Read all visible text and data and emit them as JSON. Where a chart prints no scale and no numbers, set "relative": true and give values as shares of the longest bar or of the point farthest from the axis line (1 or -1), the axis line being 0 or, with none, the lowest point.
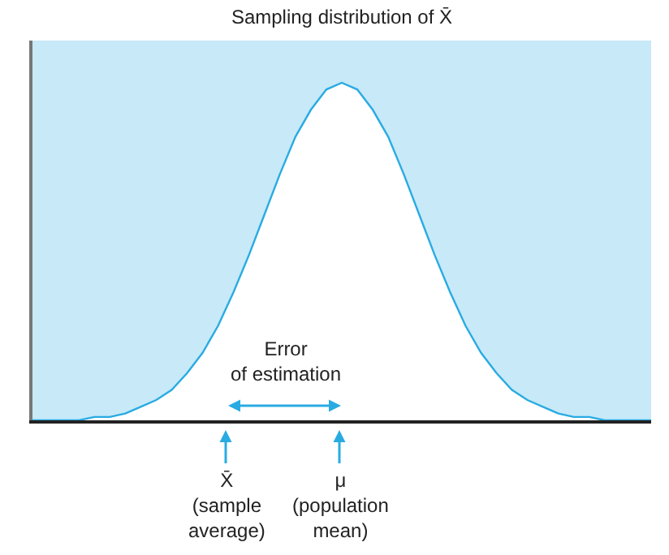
{
  "chart_data": {
    "type": "area",
    "title": "Sampling distribution of X̄",
    "relative": true,
    "grid": false,
    "categories": [
      null,
      null,
      null,
      null,
      null,
      null,
      null,
      null,
      null,
      null,
      null,
      null,
      null,
      null,
      null,
      null,
      null,
      null,
      null,
      null,
      null,
      null,
      null,
      null,
      null,
      null,
      null,
      null,
      null,
      null,
      null,
      null,
      null,
      null,
      null,
      null,
      null,
      null,
      null,
      null,
      null
    ],
    "series": [
      {
        "color": "#29abe2",
        "values": [
          0,
          0,
          0,
          0,
          0.01,
          0.01,
          0.02,
          0.04,
          0.06,
          0.09,
          0.14,
          0.2,
          0.28,
          0.38,
          0.49,
          0.61,
          0.73,
          0.84,
          0.92,
          0.98,
          1,
          0.98,
          0.92,
          0.84,
          0.73,
          0.61,
          0.49,
          0.38,
          0.28,
          0.2,
          0.14,
          0.09,
          0.06,
          0.04,
          0.02,
          0.01,
          0.01,
          0,
          0,
          0,
          0
        ]
      }
    ],
    "annotations": [
      "Error\nof estimation",
      "X̄\n(sample\naverage)",
      "μ\n(population\nmean)"
    ]
  }
}
